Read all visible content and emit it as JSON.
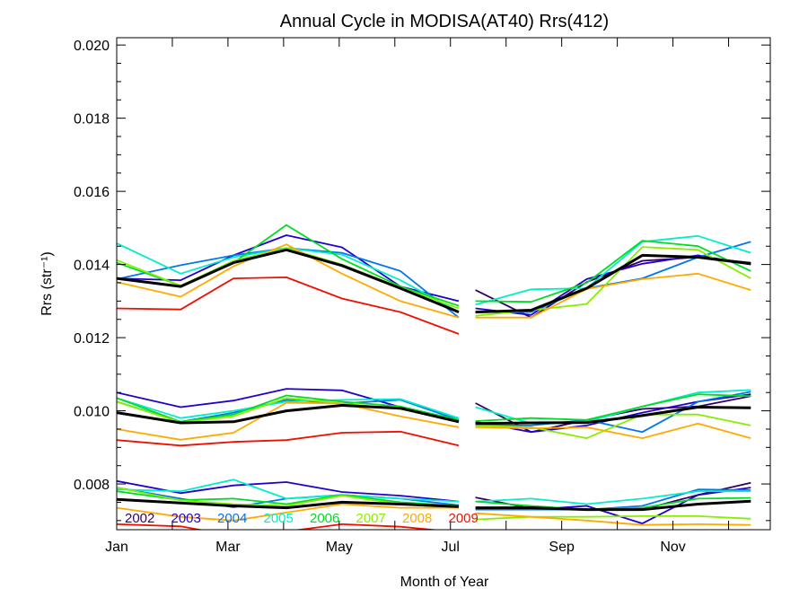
{
  "chart_data": {
    "type": "line",
    "title": "Annual Cycle in MODISA(AT40) Rrs(412)",
    "xlabel": "Month of Year",
    "ylabel": "Rrs (str⁻¹)",
    "xlim": [
      1,
      12.75
    ],
    "ylim": [
      0.00675,
      0.0202
    ],
    "xticks": [
      {
        "value": 1,
        "label": "Jan"
      },
      {
        "value": 3,
        "label": "Mar"
      },
      {
        "value": 5,
        "label": "May"
      },
      {
        "value": 7,
        "label": "Jul"
      },
      {
        "value": 9,
        "label": "Sep"
      },
      {
        "value": 11,
        "label": "Nov"
      }
    ],
    "yticks": [
      {
        "value": 0.008,
        "label": "0.008"
      },
      {
        "value": 0.01,
        "label": "0.010"
      },
      {
        "value": 0.012,
        "label": "0.012"
      },
      {
        "value": 0.014,
        "label": "0.014"
      },
      {
        "value": 0.016,
        "label": "0.016"
      },
      {
        "value": 0.018,
        "label": "0.018"
      },
      {
        "value": 0.02,
        "label": "0.020"
      }
    ],
    "grid": false,
    "legend_position": "bottom-left",
    "x_first_half": [
      1.0,
      2.15,
      3.1,
      4.05,
      5.05,
      6.1,
      7.15
    ],
    "x_second_half": [
      7.45,
      8.45,
      9.45,
      10.45,
      11.45,
      12.4
    ],
    "series": [
      {
        "name": "2002",
        "color": "#330066",
        "upper_a": [],
        "upper_b": [
          0.0133,
          0.01255,
          0.01352,
          0.0141,
          0.0142,
          0.01405
        ],
        "middle_a": [],
        "middle_b": [
          0.01021,
          0.00942,
          0.00975,
          0.01005,
          0.01012,
          0.0104
        ],
        "lower_a": [],
        "lower_b": [
          0.00763,
          0.00733,
          0.0073,
          0.0073,
          0.0077,
          0.00803
        ]
      },
      {
        "name": "2003",
        "color": "#2200cc",
        "upper_a": [
          0.01362,
          0.01357,
          0.01425,
          0.0148,
          0.01447,
          0.0134,
          0.013
        ],
        "upper_b": [
          0.0128,
          0.01262,
          0.0136,
          0.01402,
          0.01425,
          0.014
        ],
        "middle_a": [
          0.0105,
          0.0101,
          0.01028,
          0.0106,
          0.01056,
          0.0101,
          0.00975
        ],
        "middle_b": [
          0.0097,
          0.00942,
          0.0096,
          0.00995,
          0.01025,
          0.01045
        ],
        "lower_a": [
          0.00808,
          0.00775,
          0.00796,
          0.00805,
          0.00778,
          0.00768,
          0.00752
        ],
        "lower_b": [
          0.0073,
          0.0073,
          0.0074,
          0.00692,
          0.0077,
          0.0079
        ]
      },
      {
        "name": "2004",
        "color": "#0077ee",
        "upper_a": [
          0.0136,
          0.01398,
          0.01425,
          0.01445,
          0.01432,
          0.01382,
          0.01255
        ],
        "upper_b": [
          0.0127,
          0.0127,
          0.01335,
          0.01362,
          0.0142,
          0.01462
        ],
        "middle_a": [
          0.01025,
          0.0097,
          0.00995,
          0.0103,
          0.0102,
          0.0103,
          0.00975
        ],
        "middle_b": [
          0.0096,
          0.0096,
          0.00975,
          0.00942,
          0.01025,
          0.01052
        ],
        "lower_a": [
          0.0079,
          0.0076,
          0.00736,
          0.0076,
          0.0077,
          0.0076,
          0.00742
        ],
        "lower_b": [
          0.0073,
          0.0073,
          0.0073,
          0.0074,
          0.00785,
          0.00783
        ]
      },
      {
        "name": "2005",
        "color": "#00eecc",
        "upper_a": [
          0.01458,
          0.01375,
          0.0142,
          0.01445,
          0.01427,
          0.01357,
          0.0127
        ],
        "upper_b": [
          0.0129,
          0.01332,
          0.01335,
          0.01462,
          0.01478,
          0.01432
        ],
        "middle_a": [
          0.01035,
          0.0098,
          0.01,
          0.01025,
          0.0103,
          0.01032,
          0.0098
        ],
        "middle_b": [
          0.0101,
          0.00965,
          0.0097,
          0.01012,
          0.0105,
          0.01057
        ],
        "lower_a": [
          0.00785,
          0.0078,
          0.00812,
          0.0076,
          0.0077,
          0.0076,
          0.00752
        ],
        "lower_b": [
          0.00752,
          0.0076,
          0.00745,
          0.0076,
          0.0078,
          0.0078
        ]
      },
      {
        "name": "2006",
        "color": "#00dd22",
        "upper_a": [
          0.01405,
          0.01342,
          0.01405,
          0.01508,
          0.01415,
          0.0134,
          0.01287
        ],
        "upper_b": [
          0.013,
          0.01298,
          0.0135,
          0.01465,
          0.0145,
          0.01382
        ],
        "middle_a": [
          0.01035,
          0.0097,
          0.0099,
          0.01042,
          0.01025,
          0.01012,
          0.00975
        ],
        "middle_b": [
          0.00972,
          0.0098,
          0.00975,
          0.01012,
          0.01045,
          0.0104
        ],
        "lower_a": [
          0.0078,
          0.00756,
          0.0076,
          0.00745,
          0.0077,
          0.0075,
          0.0074
        ],
        "lower_b": [
          0.00752,
          0.0074,
          0.0073,
          0.00735,
          0.0076,
          0.00762
        ]
      },
      {
        "name": "2007",
        "color": "#88ee00",
        "upper_a": [
          0.01412,
          0.01342,
          0.0141,
          0.01445,
          0.014,
          0.01337,
          0.0128
        ],
        "upper_b": [
          0.0126,
          0.01275,
          0.01292,
          0.01448,
          0.0144,
          0.01362
        ],
        "middle_a": [
          0.01025,
          0.00968,
          0.00985,
          0.01035,
          0.0102,
          0.01005,
          0.0097
        ],
        "middle_b": [
          0.0096,
          0.00955,
          0.00925,
          0.0099,
          0.0099,
          0.0096
        ],
        "lower_a": [
          0.0079,
          0.00755,
          0.00745,
          0.0074,
          0.00768,
          0.00745,
          0.00735
        ],
        "lower_b": [
          0.00703,
          0.0071,
          0.0071,
          0.00712,
          0.00712,
          0.00705
        ]
      },
      {
        "name": "2008",
        "color": "#ffaa00",
        "upper_a": [
          0.01352,
          0.01312,
          0.01395,
          0.01455,
          0.01375,
          0.013,
          0.01255
        ],
        "upper_b": [
          0.01255,
          0.01255,
          0.01333,
          0.0136,
          0.01375,
          0.0133
        ],
        "middle_a": [
          0.0095,
          0.00921,
          0.0094,
          0.01022,
          0.0102,
          0.00985,
          0.00955
        ],
        "middle_b": [
          0.00955,
          0.00952,
          0.00955,
          0.00925,
          0.00965,
          0.00925
        ],
        "lower_a": [
          0.00735,
          0.0071,
          0.007,
          0.00722,
          0.00745,
          0.00735,
          0.00735
        ],
        "lower_b": [
          0.0072,
          0.0071,
          0.007,
          0.00688,
          0.0069,
          0.00688
        ]
      },
      {
        "name": "2009",
        "color": "#ee1100",
        "upper_a": [
          0.0128,
          0.01277,
          0.01362,
          0.01365,
          0.01307,
          0.0127,
          0.0121
        ],
        "upper_b": [],
        "middle_a": [
          0.0092,
          0.00905,
          0.00915,
          0.0092,
          0.0094,
          0.00943,
          0.00905
        ],
        "middle_b": [],
        "lower_a": [
          0.0069,
          0.00684,
          0.00658,
          0.0067,
          0.0069,
          0.00683,
          0.00668
        ],
        "lower_b": []
      },
      {
        "name": "",
        "color": "#000000",
        "thick": true,
        "upper_a": [
          0.01362,
          0.0134,
          0.01405,
          0.0144,
          0.01397,
          0.01335,
          0.0127
        ],
        "upper_b": [
          0.0127,
          0.01275,
          0.01335,
          0.01425,
          0.0142,
          0.01402
        ],
        "middle_a": [
          0.00995,
          0.00967,
          0.0097,
          0.01,
          0.01015,
          0.01007,
          0.0097
        ],
        "middle_b": [
          0.00965,
          0.00967,
          0.00968,
          0.00987,
          0.0101,
          0.01008
        ],
        "lower_a": [
          0.00758,
          0.00748,
          0.0074,
          0.00735,
          0.0075,
          0.00745,
          0.00738
        ],
        "lower_b": [
          0.00735,
          0.00735,
          0.0073,
          0.0073,
          0.00745,
          0.00753
        ]
      }
    ]
  }
}
